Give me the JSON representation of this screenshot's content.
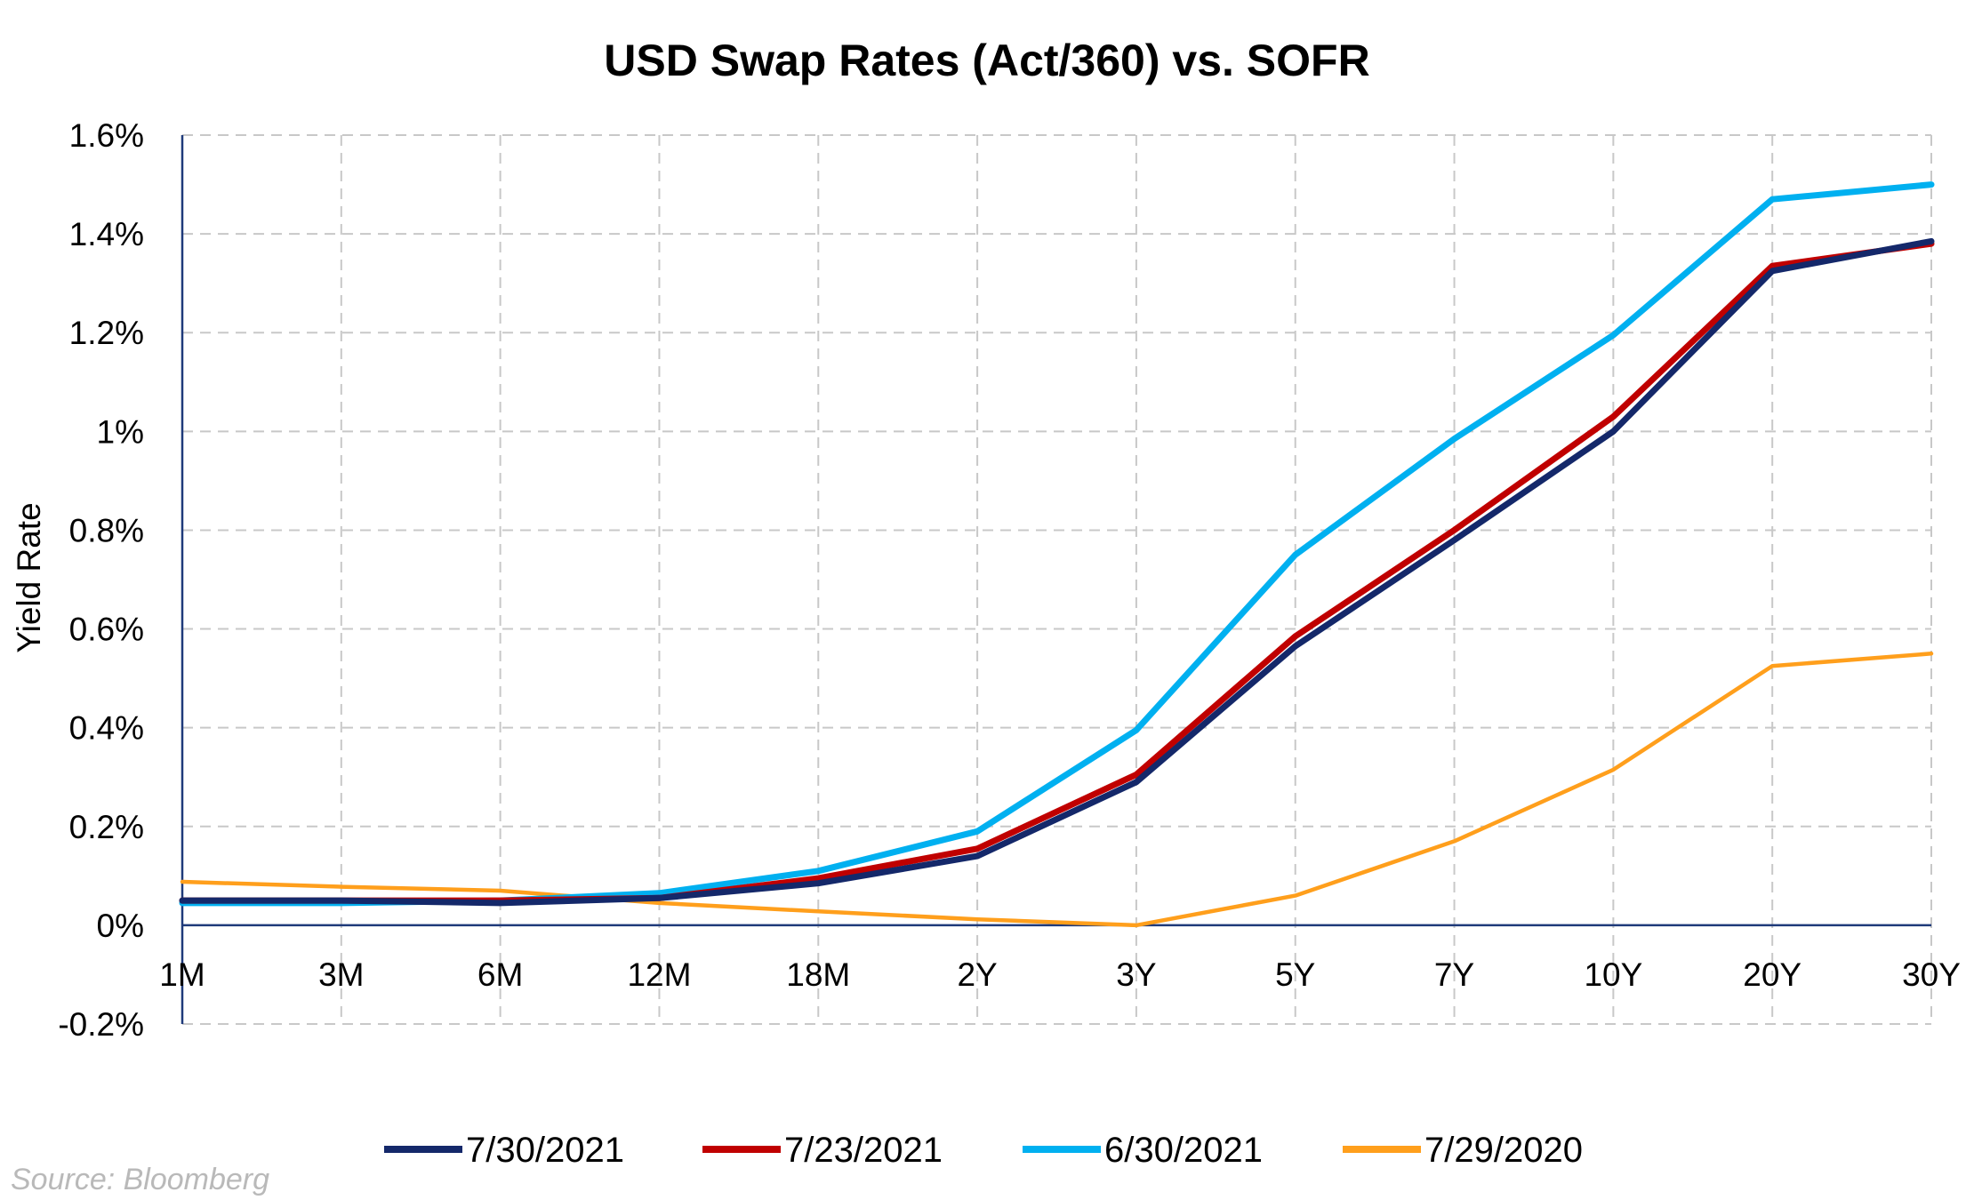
{
  "chart_data": {
    "type": "line",
    "title": "USD Swap Rates (Act/360) vs. SOFR",
    "xlabel": "",
    "ylabel": "Yield Rate",
    "categories": [
      "1M",
      "3M",
      "6M",
      "12M",
      "18M",
      "2Y",
      "3Y",
      "5Y",
      "7Y",
      "10Y",
      "20Y",
      "30Y"
    ],
    "ylim": [
      -0.2,
      1.6
    ],
    "yticks": [
      -0.2,
      0,
      0.2,
      0.4,
      0.6,
      0.8,
      1.0,
      1.2,
      1.4,
      1.6
    ],
    "ytick_labels": [
      "-0.2%",
      "0%",
      "0.2%",
      "0.4%",
      "0.6%",
      "0.8%",
      "1%",
      "1.2%",
      "1.4%",
      "1.6%"
    ],
    "grid": true,
    "legend_position": "bottom",
    "series": [
      {
        "name": "7/30/2021",
        "color": "#14286a",
        "values": [
          0.05,
          0.05,
          0.045,
          0.055,
          0.085,
          0.14,
          0.29,
          0.565,
          0.78,
          1.0,
          1.325,
          1.385
        ]
      },
      {
        "name": "7/23/2021",
        "color": "#c00000",
        "values": [
          0.05,
          0.05,
          0.05,
          0.055,
          0.095,
          0.155,
          0.305,
          0.585,
          0.8,
          1.03,
          1.335,
          1.38
        ]
      },
      {
        "name": "6/30/2021",
        "color": "#00b0f0",
        "values": [
          0.045,
          0.045,
          0.05,
          0.065,
          0.11,
          0.19,
          0.395,
          0.75,
          0.985,
          1.195,
          1.47,
          1.5
        ]
      },
      {
        "name": "7/29/2020",
        "color": "#ff9f1c",
        "values": [
          0.088,
          0.078,
          0.07,
          0.045,
          0.028,
          0.012,
          0.0,
          0.06,
          0.17,
          0.315,
          0.525,
          0.55
        ]
      }
    ]
  },
  "source": "Source: Bloomberg"
}
